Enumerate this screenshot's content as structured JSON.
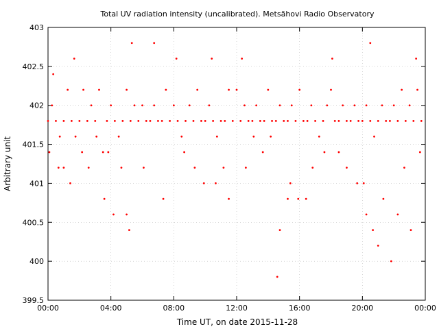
{
  "chart_data": {
    "type": "scatter",
    "title": "Total UV radiation intensity (uncalibrated). Metsähovi Radio Observatory",
    "xlabel": "Time UT, on date 2015-11-28",
    "ylabel": "Arbitrary unit",
    "xlim": [
      "00:00",
      "24:00"
    ],
    "ylim": [
      399.5,
      403
    ],
    "x_ticks": [
      "00:00",
      "04:00",
      "08:00",
      "12:00",
      "16:00",
      "20:00",
      "00:00"
    ],
    "y_ticks": [
      "399.5",
      "400",
      "400.5",
      "401",
      "401.5",
      "402",
      "402.5",
      "403"
    ],
    "grid": true,
    "marker_color": "#ff0000",
    "series": [
      {
        "x": [
          "00:00",
          "00:15",
          "00:30",
          "00:45",
          "01:00",
          "01:15",
          "01:30",
          "01:45",
          "02:00",
          "02:15",
          "02:30",
          "02:45",
          "03:00",
          "03:15",
          "03:30",
          "03:45",
          "04:00",
          "04:15",
          "04:30",
          "04:45",
          "05:00",
          "05:15",
          "05:30",
          "05:45",
          "06:00",
          "06:15",
          "06:30",
          "06:45",
          "07:00",
          "07:15",
          "07:30",
          "07:45",
          "08:00",
          "08:15",
          "08:30",
          "08:45",
          "09:00",
          "09:15",
          "09:30",
          "09:45",
          "10:00",
          "10:15",
          "10:30",
          "10:45",
          "11:00",
          "11:15",
          "11:30",
          "11:45",
          "12:00",
          "12:15",
          "12:30",
          "12:45",
          "13:00",
          "13:15",
          "13:30",
          "13:45",
          "14:00",
          "14:15",
          "14:30",
          "14:45",
          "15:00",
          "15:15",
          "15:30",
          "15:45",
          "16:00",
          "16:15",
          "16:30",
          "16:45",
          "17:00",
          "17:15",
          "17:30",
          "17:45",
          "18:00",
          "18:15",
          "18:30",
          "18:45",
          "19:00",
          "19:15",
          "19:30",
          "19:45",
          "20:00",
          "20:15",
          "20:30",
          "20:45",
          "21:00",
          "21:15",
          "21:30",
          "21:45",
          "22:00",
          "22:15",
          "22:30",
          "22:45",
          "23:00",
          "23:15",
          "23:30",
          "23:45"
        ],
        "y": [
          401.8,
          402.0,
          401.8,
          401.6,
          401.8,
          402.2,
          401.8,
          401.6,
          401.8,
          402.2,
          401.8,
          402.0,
          401.8,
          402.2,
          401.4,
          401.8,
          402.0,
          401.8,
          401.6,
          401.8,
          402.2,
          401.8,
          402.0,
          401.8,
          402.0,
          401.8,
          401.8,
          402.0,
          401.8,
          401.8,
          402.2,
          401.8,
          402.0,
          401.8,
          401.6,
          401.8,
          402.0,
          401.8,
          402.2,
          401.8,
          401.8,
          402.0,
          401.8,
          401.6,
          401.8,
          401.8,
          402.2,
          401.8,
          402.2,
          401.8,
          402.0,
          401.8,
          401.8,
          402.0,
          401.8,
          401.8,
          402.2,
          401.8,
          401.8,
          402.0,
          401.8,
          401.8,
          402.0,
          401.8,
          402.2,
          401.8,
          401.8,
          402.0,
          401.8,
          401.6,
          401.8,
          402.0,
          402.2,
          401.8,
          401.8,
          402.0,
          401.8,
          401.8,
          402.0,
          401.8,
          401.8,
          402.0,
          401.8,
          401.6,
          401.8,
          402.0,
          401.8,
          401.8,
          402.0,
          401.8,
          402.2,
          401.8,
          402.0,
          401.8,
          402.2,
          401.8
        ]
      },
      {
        "x": [
          "00:05",
          "00:20",
          "00:40",
          "01:00",
          "01:25",
          "01:40",
          "02:10",
          "02:35",
          "03:05",
          "03:35",
          "03:50",
          "04:10",
          "04:40",
          "05:00",
          "05:10",
          "05:20",
          "06:05",
          "06:45",
          "07:20",
          "08:10",
          "08:40",
          "09:20",
          "09:55",
          "10:25",
          "10:40",
          "11:10",
          "11:30",
          "12:20",
          "12:35",
          "13:05",
          "13:40",
          "14:10",
          "14:35",
          "14:45",
          "15:15",
          "15:25",
          "15:55",
          "16:25",
          "16:50",
          "17:35",
          "18:05",
          "18:30",
          "19:00",
          "19:40",
          "20:05",
          "20:15",
          "20:30",
          "20:40",
          "21:00",
          "21:20",
          "21:50",
          "22:15",
          "22:40",
          "23:05",
          "23:25",
          "23:40"
        ],
        "y": [
          401.4,
          402.4,
          401.2,
          401.2,
          401.0,
          402.6,
          401.4,
          401.2,
          401.6,
          400.8,
          401.4,
          400.6,
          401.2,
          400.6,
          400.4,
          402.8,
          401.2,
          402.8,
          400.8,
          402.6,
          401.4,
          401.2,
          401.0,
          402.6,
          401.0,
          401.2,
          400.8,
          402.6,
          401.2,
          401.6,
          401.4,
          401.6,
          399.8,
          400.4,
          400.8,
          401.0,
          400.8,
          400.8,
          401.2,
          401.4,
          402.6,
          401.4,
          401.2,
          401.0,
          401.0,
          400.6,
          402.8,
          400.4,
          400.2,
          400.8,
          400.0,
          400.6,
          401.2,
          400.4,
          402.6,
          401.4
        ]
      }
    ]
  }
}
